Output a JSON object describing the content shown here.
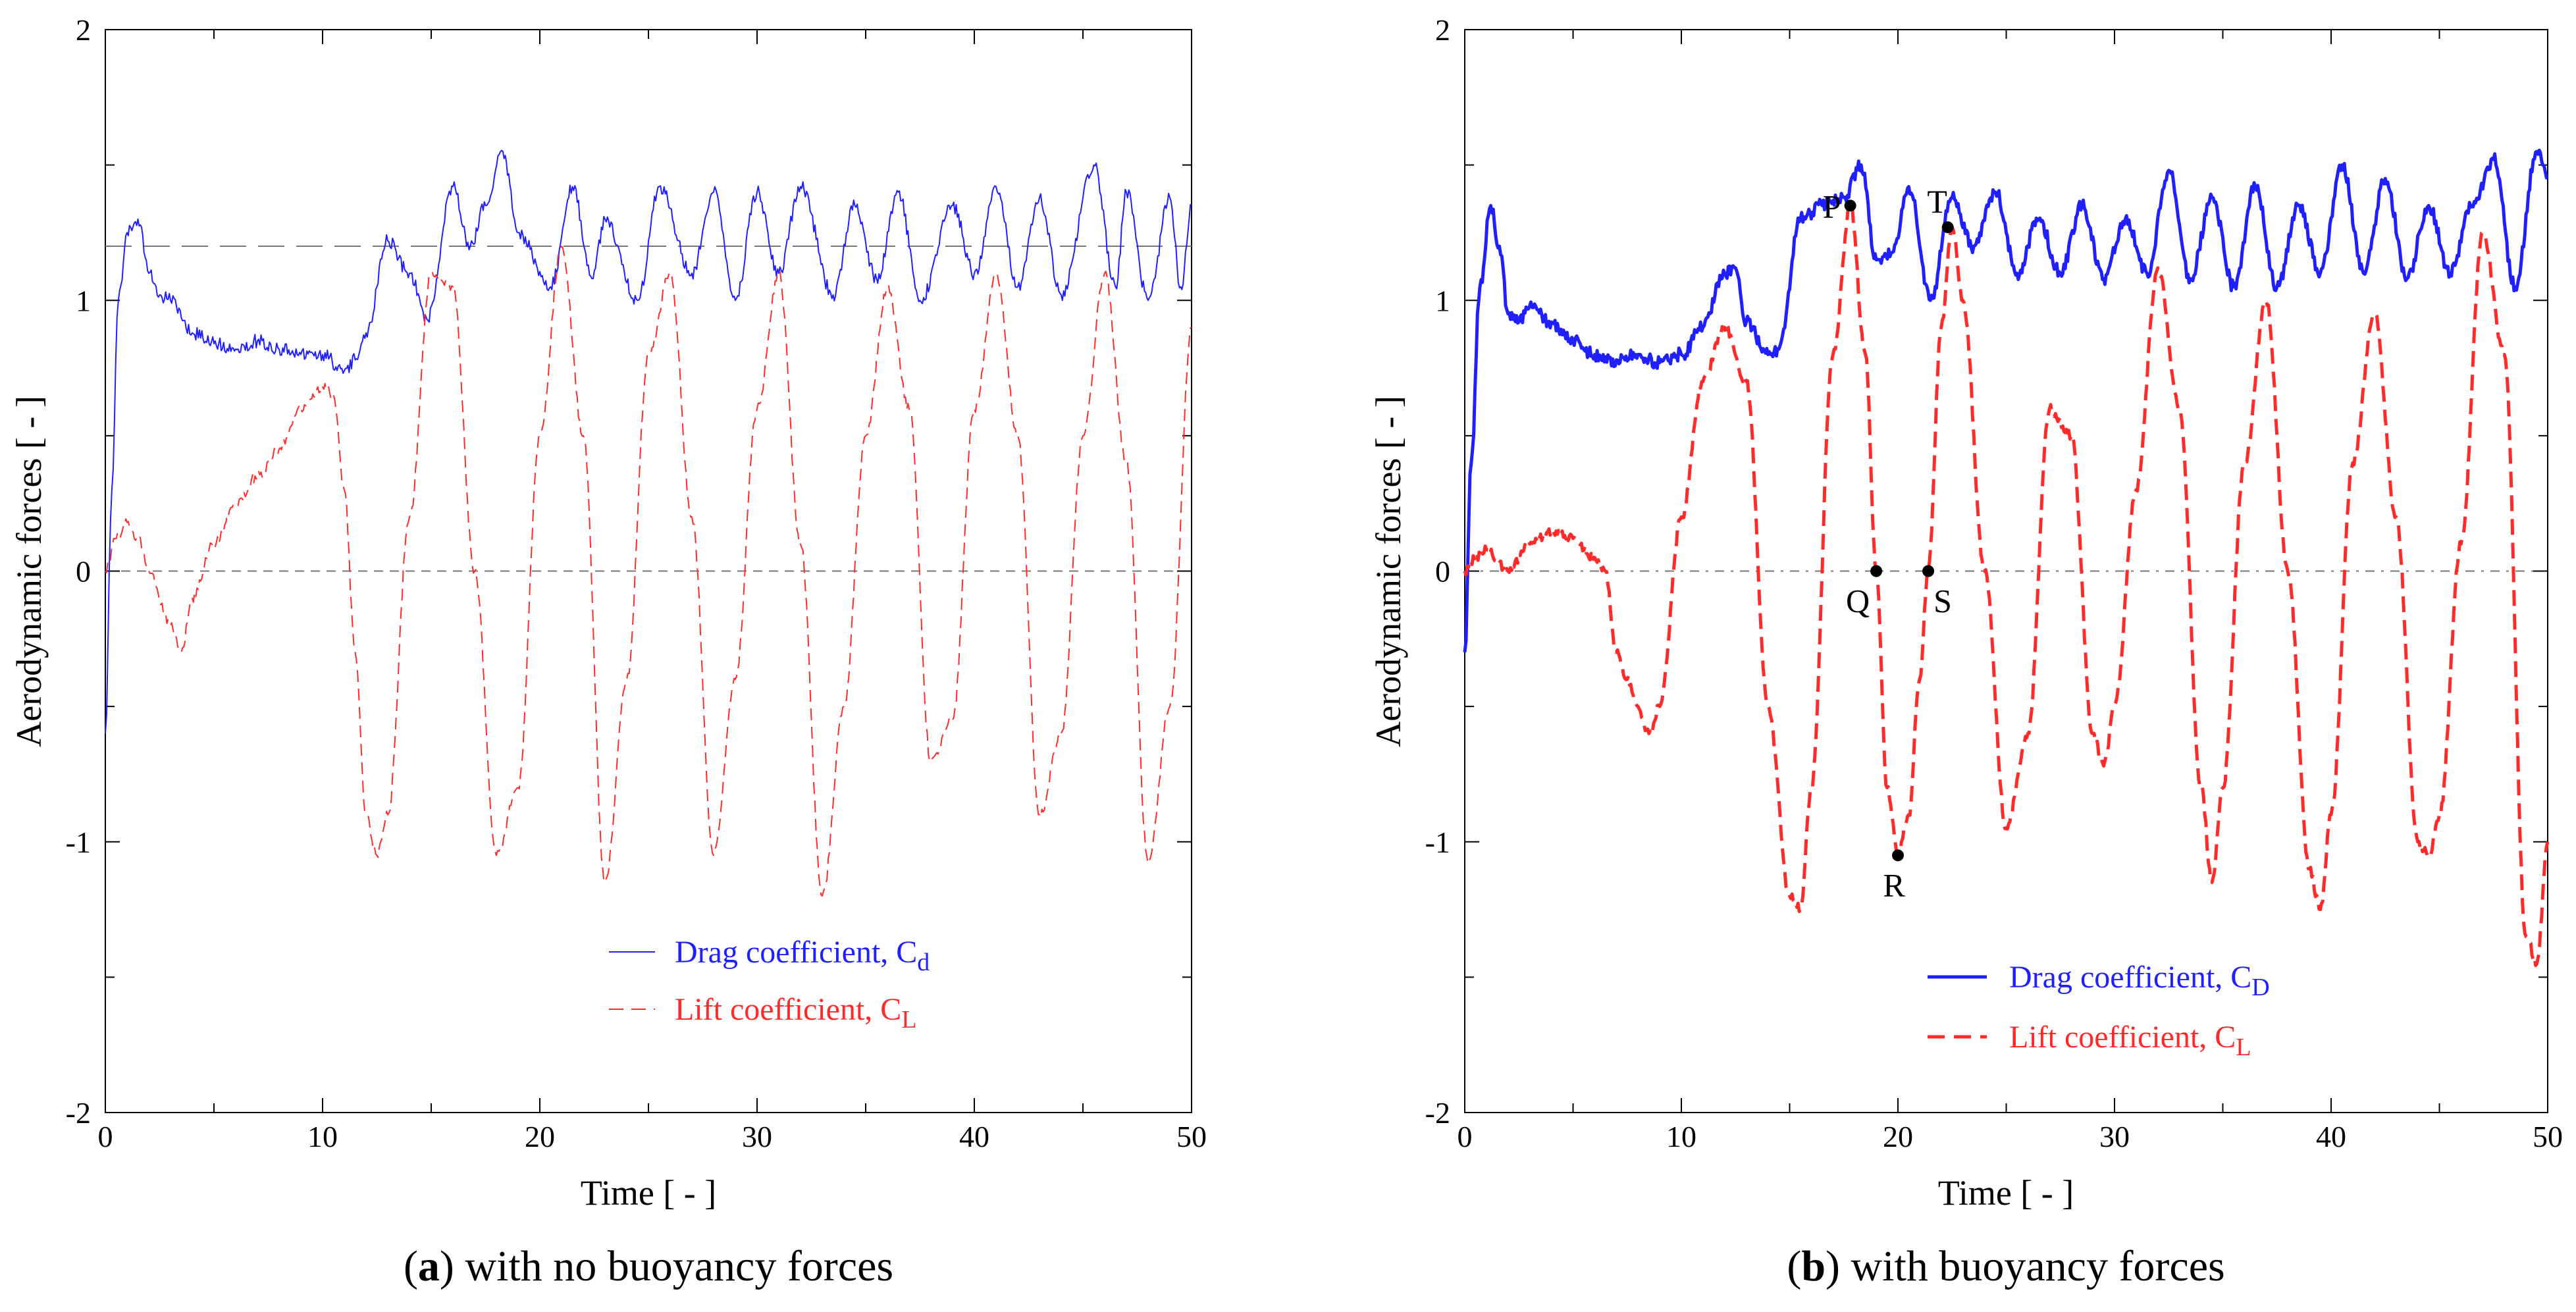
{
  "chart_data": [
    {
      "type": "line",
      "panel_label": "a",
      "caption": "with no buoyancy forces",
      "xlabel": "Time [ - ]",
      "ylabel": "Aerodynamic forces [ - ]",
      "xlim": [
        0,
        50
      ],
      "ylim": [
        -2,
        2
      ],
      "xticks": [
        "0",
        "10",
        "20",
        "30",
        "40",
        "50"
      ],
      "yticks": [
        "-2",
        "-1",
        "0",
        "1",
        "2"
      ],
      "reference_lines": [
        1.2,
        0
      ],
      "grid": false,
      "legend": {
        "position": "bottom-center",
        "entries": [
          {
            "label": "Drag coefficient, C",
            "subscript": "d",
            "color": "#1f1fff",
            "style": "solid"
          },
          {
            "label": "Lift coefficient, C",
            "subscript": "L",
            "color": "#ff2a2a",
            "style": "dashed"
          }
        ]
      },
      "series": [
        {
          "name": "Drag coefficient, Cd",
          "color": "#1f1fff",
          "style": "solid",
          "x": [
            0,
            0.3,
            0.6,
            1.0,
            1.5,
            2.0,
            2.5,
            3,
            4,
            5,
            6,
            7,
            8,
            9,
            10,
            11,
            11.5,
            12,
            13,
            14,
            14.8,
            16,
            16.8,
            17.5,
            18.3,
            19,
            20.5,
            21.5,
            22.4,
            23,
            24.5,
            25.5,
            27,
            28,
            29,
            30,
            31,
            32,
            33.5,
            34.5,
            35.5,
            36.5,
            37.5,
            39,
            40,
            41,
            42,
            43,
            44,
            45.5,
            46.5,
            47,
            48,
            49,
            49.5,
            50
          ],
          "y": [
            -0.6,
            0.3,
            1.0,
            1.25,
            1.3,
            1.1,
            1.02,
            1.0,
            0.88,
            0.84,
            0.82,
            0.85,
            0.82,
            0.8,
            0.8,
            0.74,
            0.78,
            0.88,
            1.22,
            1.1,
            0.93,
            1.42,
            1.2,
            1.35,
            1.55,
            1.25,
            1.05,
            1.42,
            1.08,
            1.3,
            1.0,
            1.42,
            1.1,
            1.4,
            1.0,
            1.4,
            1.1,
            1.42,
            1.02,
            1.35,
            1.08,
            1.4,
            1.0,
            1.35,
            1.1,
            1.42,
            1.05,
            1.38,
            1.02,
            1.5,
            1.05,
            1.4,
            1.0,
            1.38,
            1.05,
            1.35
          ]
        },
        {
          "name": "Lift coefficient, CL",
          "color": "#ff2a2a",
          "style": "dashed",
          "x": [
            0,
            0.5,
            1,
            1.5,
            2,
            3,
            3.5,
            4,
            5,
            6,
            7,
            8,
            9,
            10,
            10.5,
            11,
            11.5,
            12,
            12.5,
            13,
            14,
            15,
            16,
            17,
            18,
            19,
            20,
            21,
            22,
            23,
            24,
            25,
            26,
            27,
            28,
            29,
            30,
            31,
            32,
            33,
            34,
            35,
            36,
            37,
            38,
            39,
            40,
            41,
            42,
            43,
            44,
            45,
            46,
            47,
            48,
            49,
            50
          ],
          "y": [
            0,
            0.12,
            0.18,
            0.12,
            0.0,
            -0.2,
            -0.3,
            -0.1,
            0.1,
            0.25,
            0.35,
            0.45,
            0.6,
            0.68,
            0.65,
            0.3,
            -0.3,
            -0.9,
            -1.05,
            -0.9,
            0.2,
            1.1,
            1.05,
            0.0,
            -1.05,
            -0.8,
            0.5,
            1.2,
            0.5,
            -1.15,
            -0.4,
            0.8,
            1.1,
            0.2,
            -1.05,
            -0.4,
            0.6,
            1.1,
            0.1,
            -1.2,
            -0.5,
            0.5,
            1.05,
            0.6,
            -0.7,
            -0.55,
            0.6,
            1.1,
            0.5,
            -0.9,
            -0.6,
            0.5,
            1.1,
            0.4,
            -1.08,
            -0.5,
            0.9
          ]
        }
      ]
    },
    {
      "type": "line",
      "panel_label": "b",
      "caption": "with buoyancy forces",
      "xlabel": "Time [ - ]",
      "ylabel": "Aerodynamic forces [ - ]",
      "xlim": [
        0,
        50
      ],
      "ylim": [
        -2,
        2
      ],
      "xticks": [
        "0",
        "10",
        "20",
        "30",
        "40",
        "50"
      ],
      "yticks": [
        "-2",
        "-1",
        "0",
        "1",
        "2"
      ],
      "reference_lines": [
        0
      ],
      "grid": false,
      "legend": {
        "position": "bottom-right",
        "entries": [
          {
            "label": "Drag coefficient, C",
            "subscript": "D",
            "color": "#1f1fff",
            "style": "solid"
          },
          {
            "label": "Lift coefficient, C",
            "subscript": "L",
            "color": "#ff2a2a",
            "style": "dashed"
          }
        ]
      },
      "annotations": [
        {
          "label": "P",
          "x": 17.8,
          "y": 1.35,
          "text_pos": "left"
        },
        {
          "label": "T",
          "x": 22.3,
          "y": 1.27,
          "text_pos": "top"
        },
        {
          "label": "Q",
          "x": 19.0,
          "y": 0.0,
          "text_pos": "bottom-left"
        },
        {
          "label": "S",
          "x": 21.4,
          "y": 0.0,
          "text_pos": "bottom-right"
        },
        {
          "label": "R",
          "x": 20.0,
          "y": -1.05,
          "text_pos": "bottom"
        }
      ],
      "series": [
        {
          "name": "Drag coefficient, CD",
          "color": "#1f1fff",
          "style": "solid",
          "x": [
            0,
            0.3,
            0.7,
            1.2,
            1.6,
            2.0,
            2.5,
            3,
            4,
            5,
            6,
            7,
            8,
            9,
            10,
            11,
            12,
            12.5,
            13,
            14,
            14.5,
            15.5,
            16.5,
            17.5,
            18.3,
            19,
            19.8,
            20.5,
            21.5,
            22.5,
            23.5,
            24.5,
            25.5,
            26.5,
            27.5,
            28.5,
            29.5,
            30.5,
            31.5,
            32.5,
            33.5,
            34.5,
            35.5,
            36.5,
            37.5,
            38.5,
            39.5,
            40.5,
            41.5,
            42.5,
            43.5,
            44.5,
            45.5,
            46.5,
            47.5,
            48.5,
            49.5,
            50
          ],
          "y": [
            -0.3,
            0.4,
            1.05,
            1.35,
            1.2,
            0.95,
            0.92,
            0.98,
            0.92,
            0.85,
            0.8,
            0.78,
            0.8,
            0.77,
            0.8,
            0.9,
            1.1,
            1.12,
            0.92,
            0.8,
            0.82,
            1.3,
            1.35,
            1.38,
            1.5,
            1.15,
            1.18,
            1.42,
            1.0,
            1.38,
            1.2,
            1.4,
            1.1,
            1.3,
            1.1,
            1.35,
            1.08,
            1.3,
            1.1,
            1.48,
            1.08,
            1.38,
            1.05,
            1.42,
            1.05,
            1.35,
            1.1,
            1.5,
            1.1,
            1.45,
            1.08,
            1.35,
            1.1,
            1.35,
            1.52,
            1.05,
            1.55,
            1.45
          ]
        },
        {
          "name": "Lift coefficient, CL",
          "color": "#ff2a2a",
          "style": "dashed",
          "x": [
            0,
            0.5,
            1,
            2,
            3,
            4,
            5,
            6,
            6.5,
            7,
            7.5,
            8,
            8.5,
            9,
            10,
            11,
            12,
            13,
            14,
            15,
            15.5,
            16,
            17,
            17.8,
            18.5,
            19,
            19.5,
            20,
            20.5,
            21,
            21.4,
            22,
            22.5,
            23,
            24,
            25,
            26,
            27,
            28,
            29,
            29.5,
            30,
            31,
            32,
            33,
            34,
            34.5,
            35,
            36,
            37,
            38,
            39,
            39.5,
            40,
            41,
            42,
            43,
            44,
            44.5,
            45,
            46,
            47,
            48,
            49,
            49.5,
            50
          ],
          "y": [
            0,
            0.05,
            0.08,
            0.0,
            0.1,
            0.15,
            0.12,
            0.05,
            0.0,
            -0.3,
            -0.4,
            -0.5,
            -0.6,
            -0.5,
            0.2,
            0.7,
            0.9,
            0.7,
            -0.5,
            -1.2,
            -1.25,
            -0.8,
            0.8,
            1.35,
            0.8,
            0.0,
            -0.8,
            -1.05,
            -0.9,
            -0.4,
            0.0,
            0.9,
            1.27,
            1.0,
            0.0,
            -0.95,
            -0.6,
            0.6,
            0.5,
            -0.6,
            -0.72,
            -0.5,
            0.3,
            1.12,
            0.6,
            -0.8,
            -1.15,
            -0.8,
            0.4,
            1.0,
            0.0,
            -1.1,
            -1.25,
            -0.9,
            0.4,
            0.95,
            0.2,
            -1.0,
            -1.05,
            -0.9,
            0.1,
            1.25,
            0.8,
            -1.35,
            -1.45,
            -1.0
          ]
        }
      ]
    }
  ]
}
